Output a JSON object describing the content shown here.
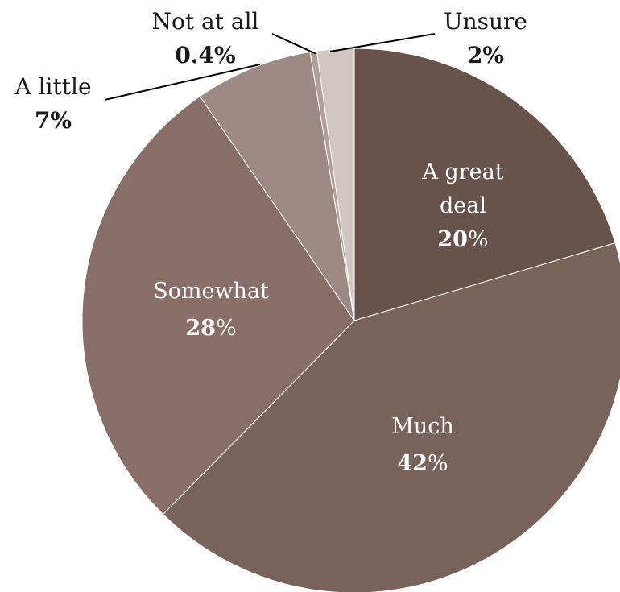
{
  "chart_data": {
    "type": "pie",
    "start_angle_deg": 0,
    "direction": "clockwise",
    "slices": [
      {
        "label_lines": [
          "A great",
          "deal"
        ],
        "pct_text": "20",
        "unit": "%",
        "value": 20.4,
        "color": "#67534a",
        "label_style": "inside"
      },
      {
        "label_lines": [
          "Much"
        ],
        "pct_text": "42",
        "unit": "%",
        "value": 42.0,
        "color": "#786259",
        "label_style": "inside"
      },
      {
        "label_lines": [
          "Somewhat"
        ],
        "pct_text": "28",
        "unit": "%",
        "value": 28.0,
        "color": "#886e66",
        "label_style": "inside"
      },
      {
        "label_lines": [
          "A little"
        ],
        "pct_text": "7",
        "unit": "%",
        "value": 7.0,
        "color": "#9d8983",
        "label_style": "outside"
      },
      {
        "label_lines": [
          "Not at all"
        ],
        "pct_text": "0.4",
        "unit": "%",
        "value": 0.4,
        "color": "#b39f9a",
        "label_style": "outside"
      },
      {
        "label_lines": [
          "Unsure"
        ],
        "pct_text": "2",
        "unit": "%",
        "value": 2.2,
        "color": "#d1c6c4",
        "label_style": "outside"
      }
    ]
  }
}
